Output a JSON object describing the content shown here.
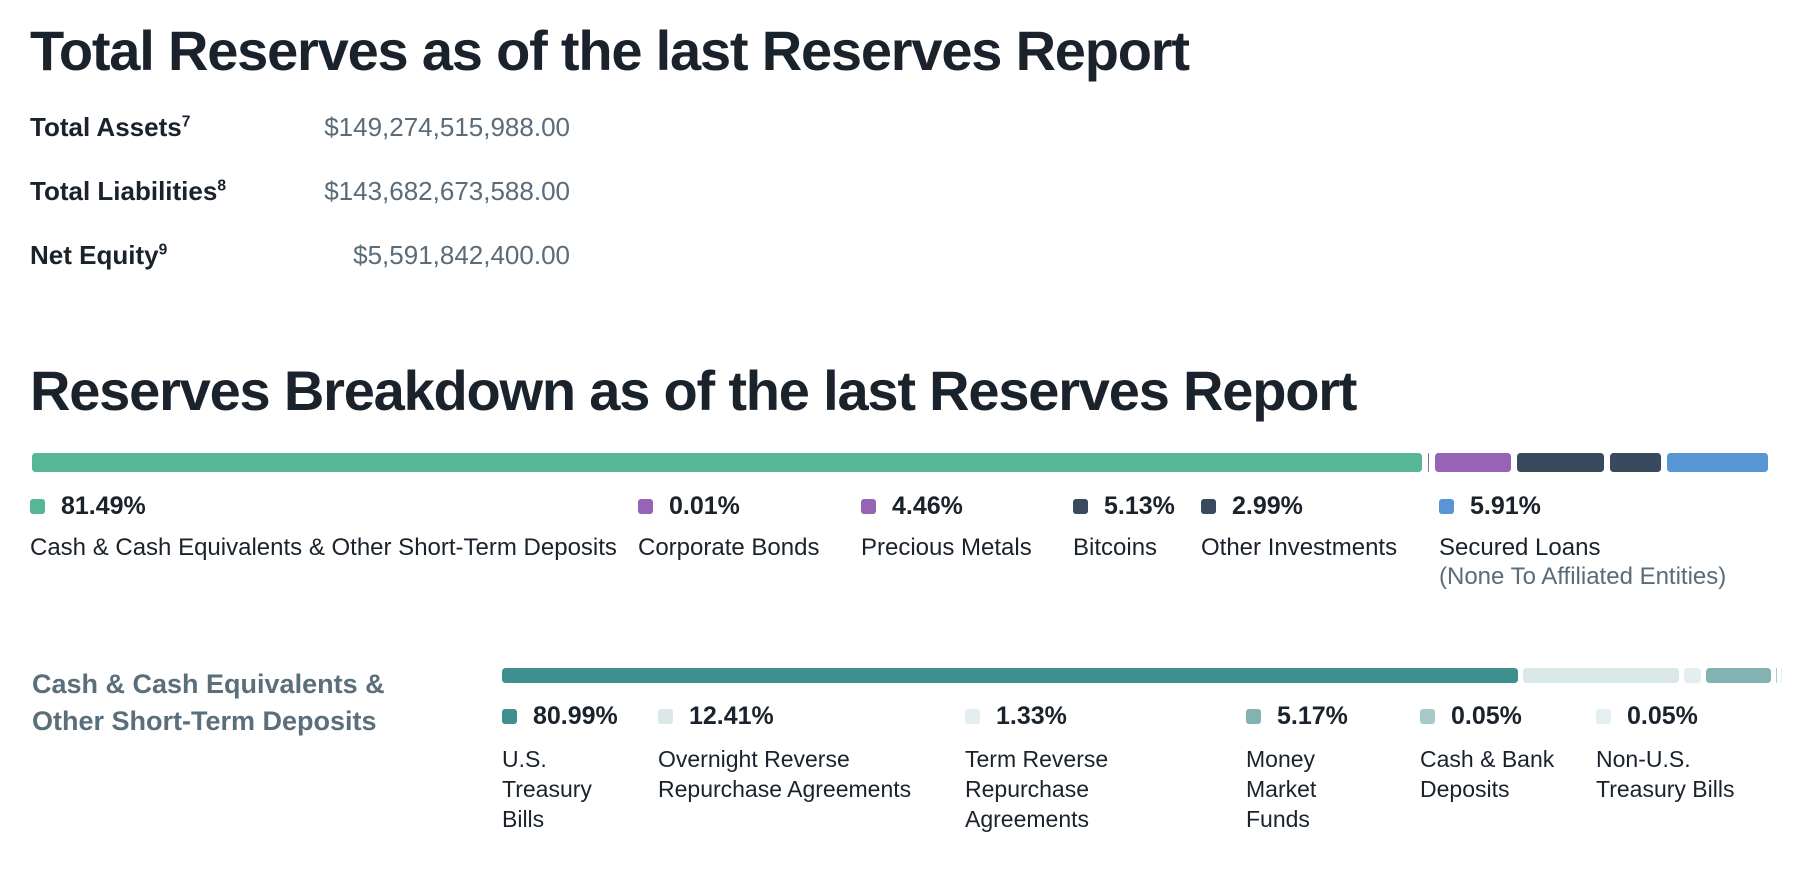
{
  "page": {
    "background": "#ffffff"
  },
  "total_reserves": {
    "title": "Total Reserves as of the last Reserves Report",
    "rows": [
      {
        "label": "Total Assets",
        "footnote": "7",
        "value": "$149,274,515,988.00"
      },
      {
        "label": "Total Liabilities",
        "footnote": "8",
        "value": "$143,682,673,588.00"
      },
      {
        "label": "Net Equity",
        "footnote": "9",
        "value": "$5,591,842,400.00"
      }
    ]
  },
  "breakdown": {
    "title": "Reserves Breakdown as of the last Reserves Report",
    "segments": [
      {
        "pct": 81.49,
        "pct_label": "81.49%",
        "label": "Cash & Cash Equivalents & Other Short-Term Deposits",
        "color": "#55b795"
      },
      {
        "pct": 0.01,
        "pct_label": "0.01%",
        "label": "Corporate Bonds",
        "color": "#9663b5"
      },
      {
        "pct": 4.46,
        "pct_label": "4.46%",
        "label": "Precious Metals",
        "color": "#9663b5"
      },
      {
        "pct": 5.13,
        "pct_label": "5.13%",
        "label": "Bitcoins",
        "color": "#394a5f"
      },
      {
        "pct": 2.99,
        "pct_label": "2.99%",
        "label": "Other Investments",
        "color": "#394a5f"
      },
      {
        "pct": 5.91,
        "pct_label": "5.91%",
        "label": "Secured Loans",
        "sublabel": "(None To Affiliated Entities)",
        "color": "#5795d5"
      }
    ]
  },
  "cash_breakdown": {
    "title": "Cash & Cash Equivalents & Other Short-Term Deposits",
    "segments": [
      {
        "pct": 80.99,
        "pct_label": "80.99%",
        "label": "U.S. Treasury Bills",
        "color": "#3f8f8e"
      },
      {
        "pct": 12.41,
        "pct_label": "12.41%",
        "label": "Overnight Reverse Repurchase Agreements",
        "color": "#d9e7e7"
      },
      {
        "pct": 1.33,
        "pct_label": "1.33%",
        "label": "Term Reverse Repurchase Agreements",
        "color": "#e4eeee"
      },
      {
        "pct": 5.17,
        "pct_label": "5.17%",
        "label": "Money Market Funds",
        "color": "#82b3b2"
      },
      {
        "pct": 0.05,
        "pct_label": "0.05%",
        "label": "Cash & Bank Deposits",
        "color": "#a6caca"
      },
      {
        "pct": 0.05,
        "pct_label": "0.05%",
        "label": "Non-U.S. Treasury Bills",
        "color": "#e4efef"
      }
    ]
  },
  "chart_data": [
    {
      "type": "bar",
      "variant": "horizontal-stacked",
      "title": "Reserves Breakdown as of the last Reserves Report",
      "categories": [
        "Cash & Cash Equivalents & Other Short-Term Deposits",
        "Corporate Bonds",
        "Precious Metals",
        "Bitcoins",
        "Other Investments",
        "Secured Loans (None To Affiliated Entities)"
      ],
      "values": [
        81.49,
        0.01,
        4.46,
        5.13,
        2.99,
        5.91
      ],
      "unit": "%",
      "xlim": [
        0,
        100
      ],
      "colors": [
        "#55b795",
        "#9663b5",
        "#9663b5",
        "#394a5f",
        "#394a5f",
        "#5795d5"
      ],
      "legend_position": "below"
    },
    {
      "type": "bar",
      "variant": "horizontal-stacked",
      "title": "Cash & Cash Equivalents & Other Short-Term Deposits",
      "categories": [
        "U.S. Treasury Bills",
        "Overnight Reverse Repurchase Agreements",
        "Term Reverse Repurchase Agreements",
        "Money Market Funds",
        "Cash & Bank Deposits",
        "Non-U.S. Treasury Bills"
      ],
      "values": [
        80.99,
        12.41,
        1.33,
        5.17,
        0.05,
        0.05
      ],
      "unit": "%",
      "xlim": [
        0,
        100
      ],
      "colors": [
        "#3f8f8e",
        "#d9e7e7",
        "#e4eeee",
        "#82b3b2",
        "#a6caca",
        "#e4efef"
      ],
      "legend_position": "below"
    }
  ]
}
